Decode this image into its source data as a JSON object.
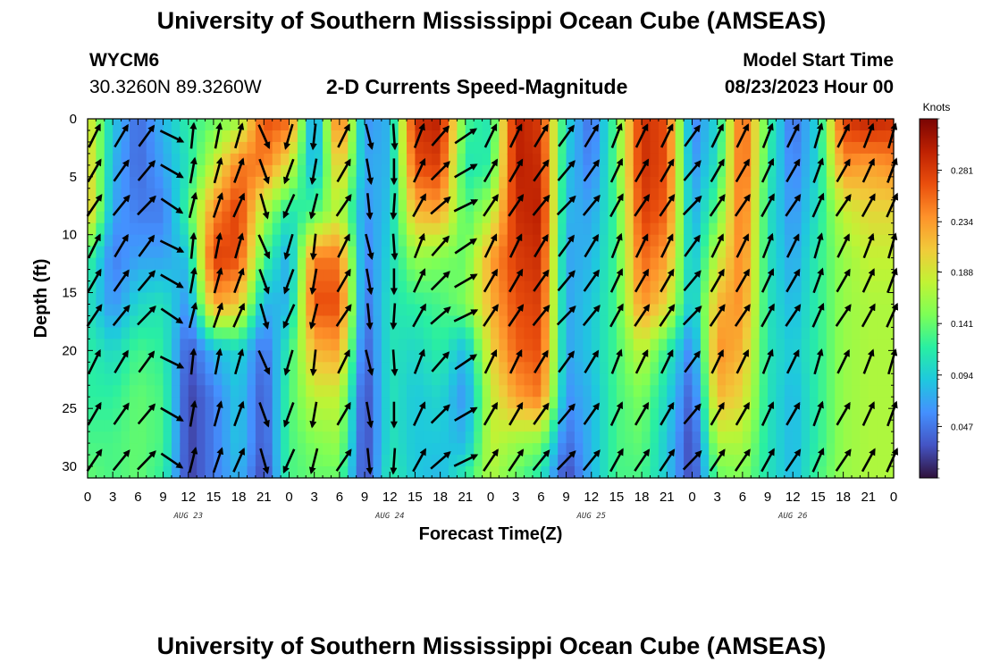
{
  "header": {
    "title": "University of Southern Mississippi Ocean Cube (AMSEAS)",
    "station": "WYCM6",
    "coords": "30.3260N  89.3260W",
    "subtitle": "2-D Currents Speed-Magnitude",
    "model_start_label": "Model Start Time",
    "model_start_value": "08/23/2023 Hour 00"
  },
  "footer": {
    "title": "University of Southern Mississippi Ocean Cube (AMSEAS)"
  },
  "chart_data": {
    "type": "heatmap",
    "title": "2-D Currents Speed-Magnitude",
    "xlabel": "Forecast Time(Z)",
    "ylabel": "Depth (ft)",
    "x_range_hours": [
      0,
      96
    ],
    "x_tick_labels": [
      "0",
      "3",
      "6",
      "9",
      "12",
      "15",
      "18",
      "21",
      "0",
      "3",
      "6",
      "9",
      "12",
      "15",
      "18",
      "21",
      "0",
      "3",
      "6",
      "9",
      "12",
      "15",
      "18",
      "21",
      "0",
      "3",
      "6",
      "9",
      "12",
      "15",
      "18",
      "21",
      "0"
    ],
    "day_labels": [
      "AUG 23",
      "AUG 24",
      "AUG 25",
      "AUG 26"
    ],
    "y_range_ft": [
      0,
      31
    ],
    "y_ticks": [
      0,
      5,
      10,
      15,
      20,
      25,
      30
    ],
    "colorbar": {
      "unit": "Knots",
      "range": [
        0,
        0.328
      ],
      "tick_values": [
        0.047,
        0.094,
        0.141,
        0.188,
        0.234,
        0.281
      ],
      "tick_labels": [
        "0.047",
        "0.094",
        "0.141",
        "0.188",
        "0.234",
        "0.281"
      ],
      "colormap": [
        "#30123b",
        "#4454c4",
        "#4490fe",
        "#1fc8de",
        "#29efa2",
        "#7dff56",
        "#c1f334",
        "#f1ca3a",
        "#fe922a",
        "#ea4f0d",
        "#be2102",
        "#7a0403"
      ]
    },
    "arrow_rows_ft": [
      1.5,
      4.5,
      7.5,
      11,
      14,
      17,
      21,
      25.5,
      29.5
    ],
    "arrow_cols_hours": [
      0.8,
      4,
      7,
      10,
      12.5,
      15.5,
      18,
      21,
      24,
      27,
      30.5,
      33.5,
      36.5,
      39.5,
      42,
      45,
      48,
      51,
      54,
      57,
      60,
      63,
      66,
      69,
      72,
      75,
      78,
      81,
      84,
      87,
      90,
      93,
      95.8
    ],
    "speed_knots_by_hour": [
      [
        0,
        0.2,
        0.21,
        0.22,
        0.13,
        0.11,
        0.12,
        0.12,
        0.13,
        0.14
      ],
      [
        3,
        0.09,
        0.08,
        0.07,
        0.05,
        0.06,
        0.1,
        0.12,
        0.13,
        0.13
      ],
      [
        6,
        0.04,
        0.04,
        0.05,
        0.07,
        0.1,
        0.13,
        0.14,
        0.14,
        0.14
      ],
      [
        9,
        0.08,
        0.07,
        0.05,
        0.07,
        0.11,
        0.12,
        0.13,
        0.13,
        0.12
      ],
      [
        12,
        0.12,
        0.11,
        0.13,
        0.09,
        0.06,
        0.03,
        0.02,
        0.02,
        0.02
      ],
      [
        15,
        0.14,
        0.18,
        0.24,
        0.28,
        0.23,
        0.08,
        0.05,
        0.05,
        0.05
      ],
      [
        18,
        0.16,
        0.25,
        0.28,
        0.27,
        0.21,
        0.1,
        0.09,
        0.09,
        0.08
      ],
      [
        21,
        0.27,
        0.25,
        0.17,
        0.13,
        0.08,
        0.04,
        0.03,
        0.03,
        0.02
      ],
      [
        24,
        0.26,
        0.19,
        0.11,
        0.07,
        0.08,
        0.12,
        0.13,
        0.13,
        0.13
      ],
      [
        27,
        0.05,
        0.07,
        0.13,
        0.25,
        0.27,
        0.22,
        0.18,
        0.15,
        0.14
      ],
      [
        30,
        0.27,
        0.22,
        0.18,
        0.25,
        0.27,
        0.23,
        0.18,
        0.16,
        0.14
      ],
      [
        33,
        0.06,
        0.07,
        0.06,
        0.05,
        0.04,
        0.03,
        0.02,
        0.02,
        0.02
      ],
      [
        36,
        0.08,
        0.08,
        0.09,
        0.1,
        0.11,
        0.11,
        0.11,
        0.11,
        0.12
      ],
      [
        39,
        0.29,
        0.27,
        0.22,
        0.16,
        0.12,
        0.1,
        0.09,
        0.09,
        0.09
      ],
      [
        42,
        0.3,
        0.28,
        0.23,
        0.15,
        0.13,
        0.12,
        0.1,
        0.09,
        0.08
      ],
      [
        45,
        0.13,
        0.11,
        0.13,
        0.14,
        0.15,
        0.08,
        0.06,
        0.08,
        0.12
      ],
      [
        48,
        0.11,
        0.12,
        0.17,
        0.23,
        0.22,
        0.2,
        0.18,
        0.18,
        0.17
      ],
      [
        51,
        0.3,
        0.3,
        0.29,
        0.28,
        0.27,
        0.26,
        0.23,
        0.16,
        0.14
      ],
      [
        54,
        0.28,
        0.29,
        0.3,
        0.29,
        0.28,
        0.27,
        0.25,
        0.15,
        0.11
      ],
      [
        57,
        0.1,
        0.09,
        0.08,
        0.07,
        0.07,
        0.07,
        0.06,
        0.04,
        0.02
      ],
      [
        60,
        0.04,
        0.05,
        0.07,
        0.08,
        0.09,
        0.09,
        0.08,
        0.08,
        0.08
      ],
      [
        63,
        0.14,
        0.14,
        0.13,
        0.13,
        0.13,
        0.13,
        0.13,
        0.13,
        0.13
      ],
      [
        66,
        0.29,
        0.29,
        0.28,
        0.26,
        0.24,
        0.18,
        0.15,
        0.14,
        0.13
      ],
      [
        69,
        0.27,
        0.27,
        0.26,
        0.23,
        0.2,
        0.12,
        0.1,
        0.09,
        0.09
      ],
      [
        72,
        0.05,
        0.06,
        0.07,
        0.08,
        0.08,
        0.05,
        0.03,
        0.02,
        0.02
      ],
      [
        75,
        0.1,
        0.11,
        0.14,
        0.18,
        0.22,
        0.24,
        0.22,
        0.17,
        0.14
      ],
      [
        78,
        0.27,
        0.27,
        0.26,
        0.25,
        0.24,
        0.22,
        0.2,
        0.17,
        0.15
      ],
      [
        81,
        0.13,
        0.12,
        0.11,
        0.11,
        0.11,
        0.11,
        0.11,
        0.11,
        0.11
      ],
      [
        84,
        0.04,
        0.05,
        0.06,
        0.07,
        0.08,
        0.09,
        0.08,
        0.08,
        0.08
      ],
      [
        87,
        0.1,
        0.1,
        0.11,
        0.12,
        0.12,
        0.12,
        0.12,
        0.12,
        0.13
      ],
      [
        90,
        0.28,
        0.24,
        0.18,
        0.16,
        0.16,
        0.16,
        0.16,
        0.16,
        0.16
      ],
      [
        93,
        0.3,
        0.23,
        0.2,
        0.18,
        0.17,
        0.17,
        0.17,
        0.17,
        0.17
      ],
      [
        96,
        0.29,
        0.24,
        0.2,
        0.18,
        0.17,
        0.17,
        0.17,
        0.17,
        0.17
      ]
    ],
    "speed_depth_nodes_ft": [
      0,
      4,
      8,
      12,
      16,
      20,
      24,
      28,
      31
    ],
    "direction_deg_by_hour": [
      [
        0,
        30
      ],
      [
        3,
        35
      ],
      [
        6,
        40
      ],
      [
        9,
        120
      ],
      [
        12,
        10
      ],
      [
        15,
        15
      ],
      [
        18,
        20
      ],
      [
        21,
        160
      ],
      [
        24,
        200
      ],
      [
        27,
        190
      ],
      [
        30,
        30
      ],
      [
        33,
        170
      ],
      [
        36,
        180
      ],
      [
        39,
        25
      ],
      [
        42,
        45
      ],
      [
        45,
        60
      ],
      [
        48,
        30
      ],
      [
        51,
        30
      ],
      [
        54,
        35
      ],
      [
        57,
        40
      ],
      [
        60,
        35
      ],
      [
        63,
        25
      ],
      [
        66,
        30
      ],
      [
        69,
        30
      ],
      [
        72,
        40
      ],
      [
        75,
        30
      ],
      [
        78,
        30
      ],
      [
        81,
        25
      ],
      [
        84,
        30
      ],
      [
        87,
        20
      ],
      [
        90,
        30
      ],
      [
        93,
        25
      ],
      [
        96,
        20
      ]
    ]
  }
}
